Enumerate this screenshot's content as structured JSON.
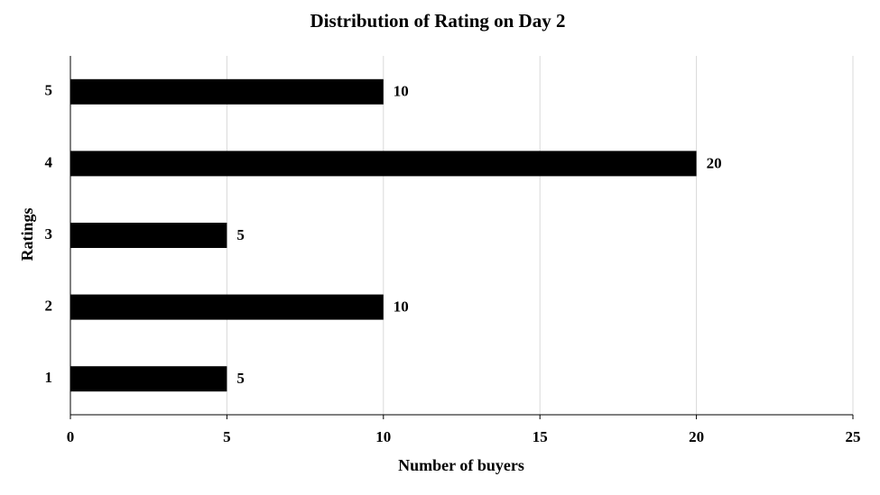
{
  "chart_data": {
    "type": "barh",
    "title": "Distribution of Rating on Day 2",
    "x_label": "Number of buyers",
    "y_label": "Ratings",
    "categories": [
      "5",
      "4",
      "3",
      "2",
      "1"
    ],
    "values": [
      10,
      20,
      5,
      10,
      5
    ],
    "color": "#000000",
    "xlim": [
      0,
      25
    ],
    "xticks": [
      0,
      5,
      10,
      15,
      20,
      25
    ],
    "grid": true
  }
}
